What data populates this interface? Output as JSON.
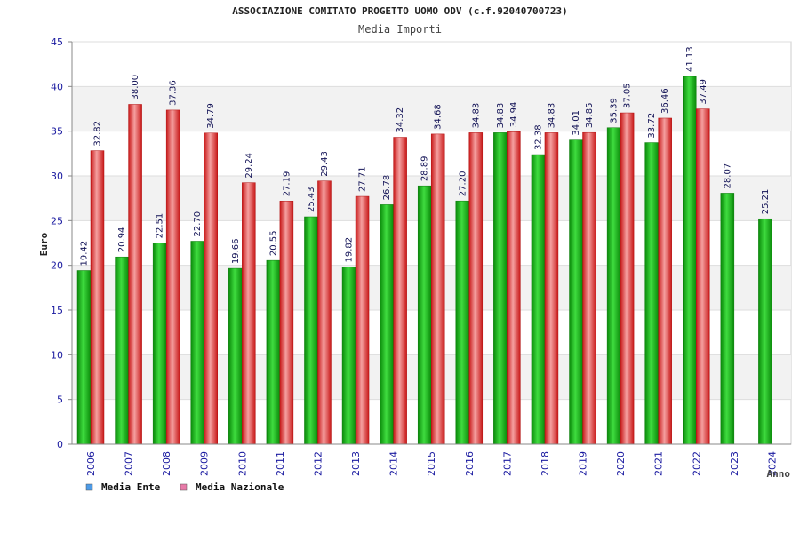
{
  "chart_data": {
    "type": "bar",
    "title": "ASSOCIAZIONE COMITATO PROGETTO UOMO ODV (c.f.92040700723)",
    "subtitle": "Media Importi",
    "ylabel": "Euro",
    "xlabel": "Anno",
    "ylim": [
      0,
      45
    ],
    "yticks": [
      0,
      5,
      10,
      15,
      20,
      25,
      30,
      35,
      40,
      45
    ],
    "grid": true,
    "legend_position": "bottom-left",
    "categories": [
      "2006",
      "2007",
      "2008",
      "2009",
      "2010",
      "2011",
      "2012",
      "2013",
      "2014",
      "2015",
      "2016",
      "2017",
      "2018",
      "2019",
      "2020",
      "2021",
      "2022",
      "2023",
      "2024"
    ],
    "series": [
      {
        "name": "Media Ente",
        "color": "#22bb22",
        "legend_color": "#4d9be8",
        "values": [
          19.42,
          20.94,
          22.51,
          22.7,
          19.66,
          20.55,
          25.43,
          19.82,
          26.78,
          28.89,
          27.2,
          34.83,
          32.38,
          34.01,
          35.39,
          33.72,
          41.13,
          28.07,
          25.21
        ],
        "labels": [
          "19.42",
          "20.94",
          "22.51",
          "22.70",
          "19.66",
          "20.55",
          "25.43",
          "19.82",
          "26.78",
          "28.89",
          "27.20",
          "34.83",
          "32.38",
          "34.01",
          "35.39",
          "33.72",
          "41.13",
          "28.07",
          "25.21"
        ]
      },
      {
        "name": "Media Nazionale",
        "color": "#e83a3a",
        "legend_color": "#e87aa8",
        "values": [
          32.82,
          38.0,
          37.36,
          34.79,
          29.24,
          27.19,
          29.43,
          27.71,
          34.32,
          34.68,
          34.83,
          34.94,
          34.83,
          34.85,
          37.05,
          36.46,
          37.49,
          null,
          null
        ],
        "labels": [
          "32.82",
          "38.00",
          "37.36",
          "34.79",
          "29.24",
          "27.19",
          "29.43",
          "27.71",
          "34.32",
          "34.68",
          "34.83",
          "34.94",
          "34.83",
          "34.85",
          "37.05",
          "36.46",
          "37.49",
          "",
          ""
        ]
      }
    ]
  }
}
